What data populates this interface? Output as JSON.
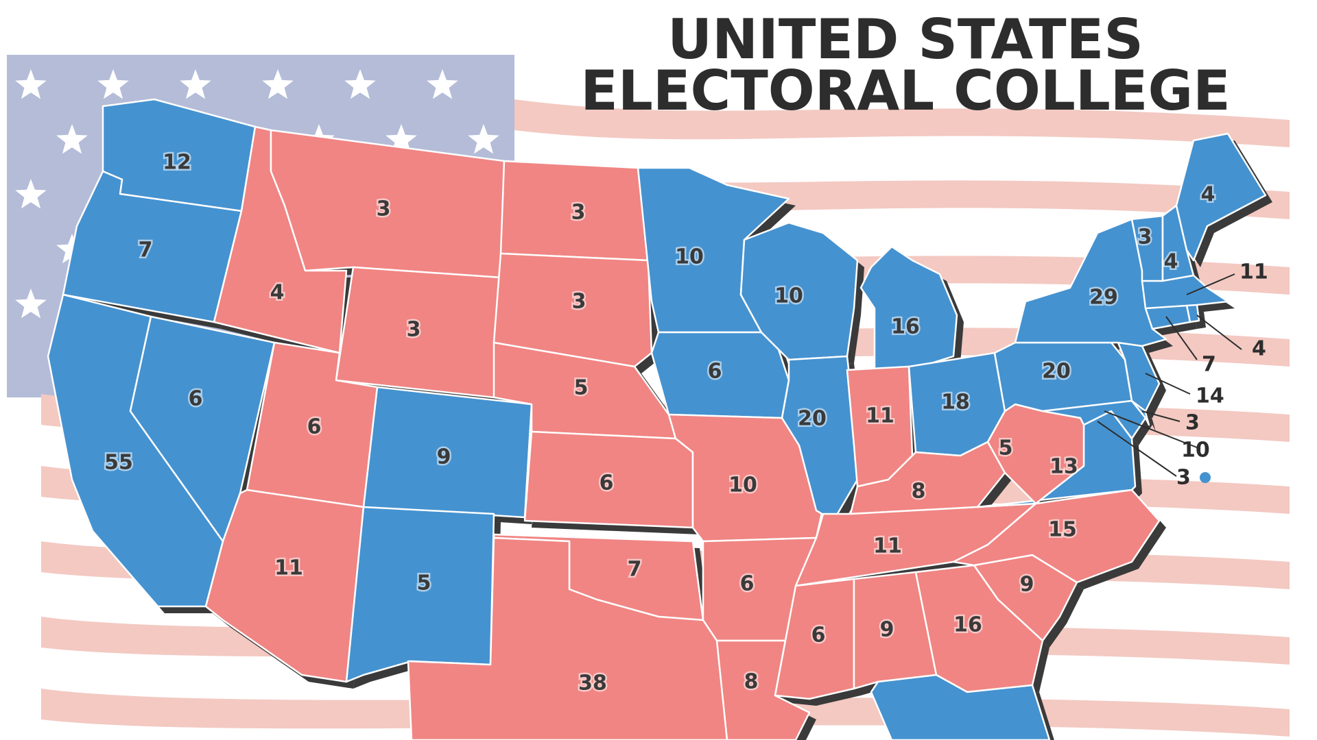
{
  "title": {
    "line1": "UNITED STATES",
    "line2": "ELECTORAL COLLEGE"
  },
  "colors": {
    "democrat": "#4592d0",
    "republican": "#f08583",
    "flag_blue": "#b4bcd8",
    "flag_stripe": "#f3c9c2",
    "shadow": "#3a3a3a",
    "title": "#2d2d2d"
  },
  "states": [
    {
      "id": "WA",
      "votes": "12",
      "party": "democrat"
    },
    {
      "id": "OR",
      "votes": "7",
      "party": "democrat"
    },
    {
      "id": "CA",
      "votes": "55",
      "party": "democrat"
    },
    {
      "id": "NV",
      "votes": "6",
      "party": "democrat"
    },
    {
      "id": "ID",
      "votes": "4",
      "party": "republican"
    },
    {
      "id": "MT",
      "votes": "3",
      "party": "republican"
    },
    {
      "id": "WY",
      "votes": "3",
      "party": "republican"
    },
    {
      "id": "UT",
      "votes": "6",
      "party": "republican"
    },
    {
      "id": "AZ",
      "votes": "11",
      "party": "republican"
    },
    {
      "id": "CO",
      "votes": "9",
      "party": "democrat"
    },
    {
      "id": "NM",
      "votes": "5",
      "party": "democrat"
    },
    {
      "id": "ND",
      "votes": "3",
      "party": "republican"
    },
    {
      "id": "SD",
      "votes": "3",
      "party": "republican"
    },
    {
      "id": "NE",
      "votes": "5",
      "party": "republican"
    },
    {
      "id": "KS",
      "votes": "6",
      "party": "republican"
    },
    {
      "id": "OK",
      "votes": "7",
      "party": "republican"
    },
    {
      "id": "TX",
      "votes": "38",
      "party": "republican"
    },
    {
      "id": "MN",
      "votes": "10",
      "party": "democrat"
    },
    {
      "id": "IA",
      "votes": "6",
      "party": "democrat"
    },
    {
      "id": "MO",
      "votes": "10",
      "party": "republican"
    },
    {
      "id": "AR",
      "votes": "6",
      "party": "republican"
    },
    {
      "id": "LA",
      "votes": "8",
      "party": "republican"
    },
    {
      "id": "WI",
      "votes": "10",
      "party": "democrat"
    },
    {
      "id": "IL",
      "votes": "20",
      "party": "democrat"
    },
    {
      "id": "MI",
      "votes": "16",
      "party": "democrat"
    },
    {
      "id": "IN",
      "votes": "11",
      "party": "republican"
    },
    {
      "id": "OH",
      "votes": "18",
      "party": "democrat"
    },
    {
      "id": "KY",
      "votes": "8",
      "party": "republican"
    },
    {
      "id": "TN",
      "votes": "11",
      "party": "republican"
    },
    {
      "id": "MS",
      "votes": "6",
      "party": "republican"
    },
    {
      "id": "AL",
      "votes": "9",
      "party": "republican"
    },
    {
      "id": "GA",
      "votes": "16",
      "party": "republican"
    },
    {
      "id": "FL",
      "votes": "",
      "party": "democrat"
    },
    {
      "id": "SC",
      "votes": "9",
      "party": "republican"
    },
    {
      "id": "NC",
      "votes": "15",
      "party": "republican"
    },
    {
      "id": "VA",
      "votes": "13",
      "party": "democrat"
    },
    {
      "id": "WV",
      "votes": "5",
      "party": "republican"
    },
    {
      "id": "PA",
      "votes": "20",
      "party": "democrat"
    },
    {
      "id": "NY",
      "votes": "29",
      "party": "democrat"
    },
    {
      "id": "VT",
      "votes": "3",
      "party": "democrat"
    },
    {
      "id": "NH",
      "votes": "4",
      "party": "democrat"
    },
    {
      "id": "ME",
      "votes": "4",
      "party": "democrat"
    }
  ],
  "callouts": [
    {
      "id": "MA",
      "votes": "11"
    },
    {
      "id": "RI",
      "votes": "4"
    },
    {
      "id": "CT",
      "votes": "7"
    },
    {
      "id": "NJ",
      "votes": "14"
    },
    {
      "id": "DE",
      "votes": "3"
    },
    {
      "id": "MD",
      "votes": "10"
    },
    {
      "id": "DC",
      "votes": "3"
    }
  ]
}
